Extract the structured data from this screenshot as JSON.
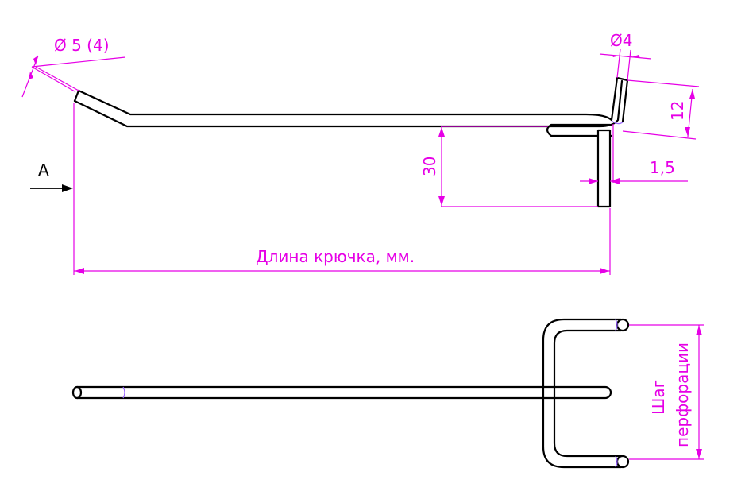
{
  "colors": {
    "dimension": "#e600e6",
    "part": "#000000",
    "section_mark": "#9a66ff"
  },
  "side_view": {
    "diameter_label": "Ø 5 (4)",
    "tip_diameter_label": "Ø4",
    "tip_height_label": "12",
    "drop_height_label": "30",
    "offset_label": "1,5",
    "view_arrow_label": "A",
    "length_label": "Длина крючка, мм."
  },
  "top_view": {
    "pitch_label_line1": "Шаг",
    "pitch_label_line2": "перфорации"
  }
}
